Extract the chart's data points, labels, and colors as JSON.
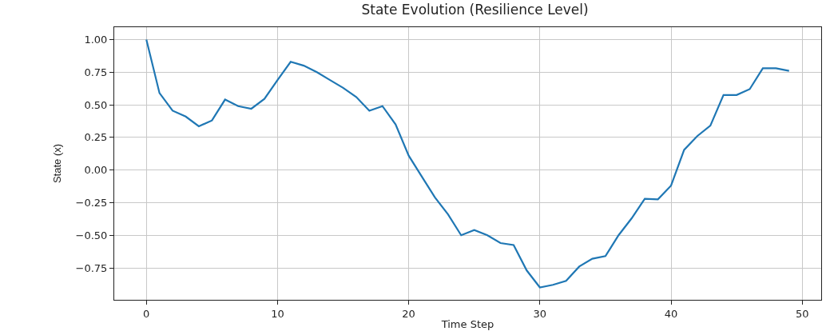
{
  "chart_data": {
    "type": "line",
    "title": "State Evolution (Resilience Level)",
    "xlabel": "Time Step",
    "ylabel": "State (x)",
    "x": [
      0,
      1,
      2,
      3,
      4,
      5,
      6,
      7,
      8,
      9,
      10,
      11,
      12,
      13,
      14,
      15,
      16,
      17,
      18,
      19,
      20,
      21,
      22,
      23,
      24,
      25,
      26,
      27,
      28,
      29,
      30,
      31,
      32,
      33,
      34,
      35,
      36,
      37,
      38,
      39,
      40,
      41,
      42,
      43,
      44,
      45,
      46,
      47,
      48,
      49
    ],
    "series": [
      {
        "color": "#1f77b4",
        "values": [
          1.0,
          0.59,
          0.455,
          0.41,
          0.335,
          0.38,
          0.54,
          0.49,
          0.47,
          0.545,
          0.69,
          0.83,
          0.8,
          0.75,
          0.69,
          0.63,
          0.56,
          0.455,
          0.49,
          0.35,
          0.11,
          -0.05,
          -0.21,
          -0.34,
          -0.5,
          -0.46,
          -0.5,
          -0.56,
          -0.575,
          -0.77,
          -0.9,
          -0.88,
          -0.85,
          -0.74,
          -0.68,
          -0.66,
          -0.5,
          -0.37,
          -0.22,
          -0.225,
          -0.12,
          0.155,
          0.26,
          0.34,
          0.575,
          0.575,
          0.62,
          0.78,
          0.78,
          0.76
        ]
      }
    ],
    "xlim": [
      -2.45,
      51.45
    ],
    "xticks": [
      0,
      10,
      20,
      30,
      40,
      50
    ],
    "ylim": [
      -0.995,
      1.095
    ],
    "yticks": [
      {
        "value": -0.75,
        "label": "−0.75"
      },
      {
        "value": -0.5,
        "label": "−0.50"
      },
      {
        "value": -0.25,
        "label": "−0.25"
      },
      {
        "value": 0,
        "label": "0.00"
      },
      {
        "value": 0.25,
        "label": "0.25"
      },
      {
        "value": 0.5,
        "label": "0.50"
      },
      {
        "value": 0.75,
        "label": "0.75"
      },
      {
        "value": 1.0,
        "label": "1.00"
      }
    ],
    "grid": true
  }
}
